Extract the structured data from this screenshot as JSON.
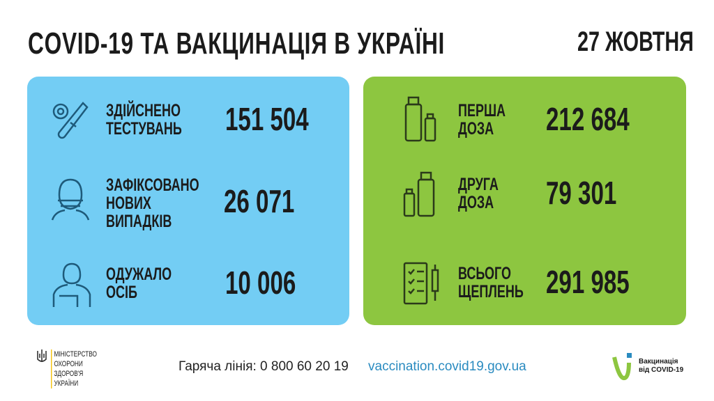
{
  "header": {
    "title": "COVID-19 ТА ВАКЦИНАЦІЯ В УКРАЇНІ",
    "date": "27 ЖОВТНЯ"
  },
  "covid_panel": {
    "color": "#73cdf4",
    "items": [
      {
        "icon": "test-tube-icon",
        "label": [
          "ЗДІЙСНЕНО",
          "ТЕСТУВАНЬ"
        ],
        "value": "151 504"
      },
      {
        "icon": "masked-person-icon",
        "label": [
          "ЗАФІКСОВАНО",
          "НОВИХ",
          "ВИПАДКІВ"
        ],
        "value": "26 071"
      },
      {
        "icon": "recovered-person-icon",
        "label": [
          "ОДУЖАЛО",
          "ОСІБ"
        ],
        "value": "10 006"
      }
    ]
  },
  "vaccine_panel": {
    "color": "#8dc640",
    "items": [
      {
        "icon": "vaccine-vials-icon",
        "label": [
          "ПЕРША",
          "ДОЗА"
        ],
        "value": "212 684"
      },
      {
        "icon": "vaccine-vials-icon",
        "label": [
          "ДРУГА",
          "ДОЗА"
        ],
        "value": "79 301"
      },
      {
        "icon": "checklist-syringe-icon",
        "label": [
          "ВСЬОГО",
          "ЩЕПЛЕНЬ"
        ],
        "value": "291 985"
      }
    ]
  },
  "footer": {
    "ministry": [
      "МІНІСТЕРСТВО",
      "ОХОРОНИ",
      "ЗДОРОВ'Я",
      "УКРАЇНИ"
    ],
    "hotline": "Гаряча лінія: 0 800 60 20 19",
    "website": "vaccination.covid19.gov.ua",
    "vaccination_logo": [
      "Вакцинація",
      "від COVID-19"
    ]
  }
}
